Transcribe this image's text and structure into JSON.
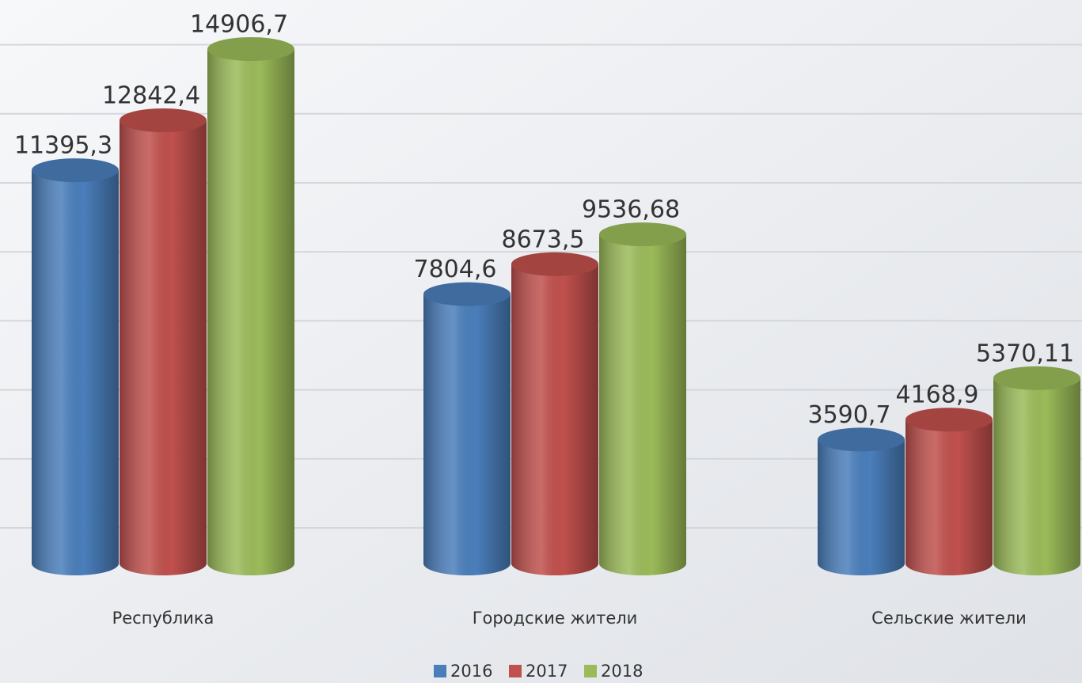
{
  "chart_data": {
    "type": "bar3d",
    "categories": [
      "Республика",
      "Городские жители",
      "Сельские жители"
    ],
    "series": [
      {
        "name": "2016",
        "color": "#4a7ebb",
        "values": [
          11395.3,
          7804.6,
          3590.7
        ],
        "value_labels": [
          "11395,3",
          "7804,6",
          "3590,7"
        ]
      },
      {
        "name": "2017",
        "color": "#c0504d",
        "values": [
          12842.4,
          8673.5,
          4168.9
        ],
        "value_labels": [
          "12842,4",
          "8673,5",
          "4168,9"
        ]
      },
      {
        "name": "2018",
        "color": "#9bbb59",
        "values": [
          14906.7,
          9536.68,
          5370.11
        ],
        "value_labels": [
          "14906,7",
          "9536,68",
          "5370,11"
        ]
      }
    ],
    "ylim": [
      0,
      16000
    ],
    "yticks": [
      0,
      2000,
      4000,
      6000,
      8000,
      10000,
      12000,
      14000
    ],
    "grid": true,
    "legend": "bottom"
  }
}
